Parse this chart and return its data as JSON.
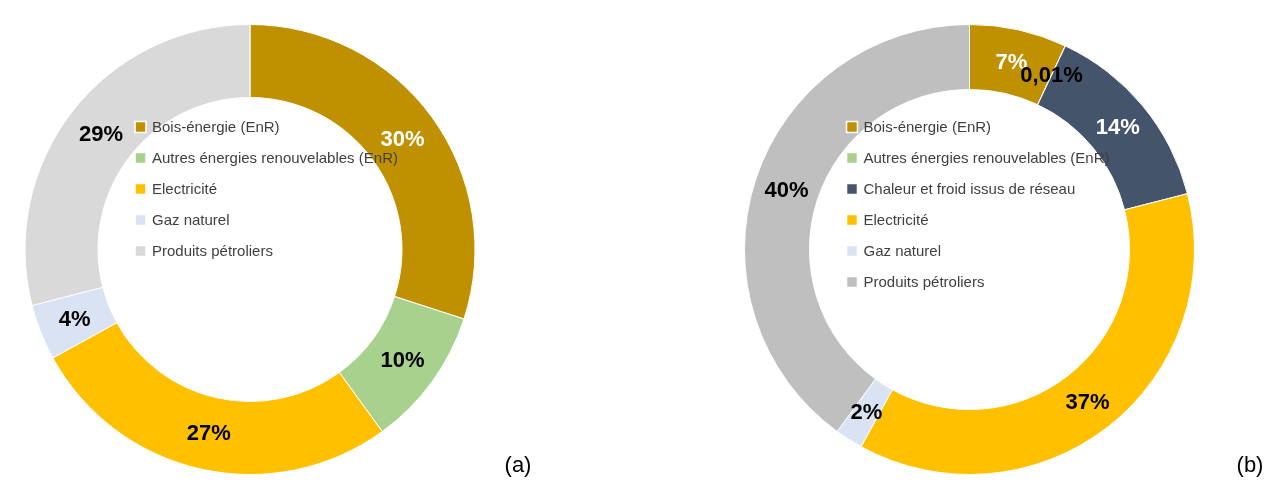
{
  "chart_data": [
    {
      "type": "donut",
      "categories": [
        "Bois-énergie (EnR)",
        "Autres énergies renouvelables (EnR)",
        "Electricité",
        "Gaz naturel",
        "Produits pétroliers"
      ],
      "values": [
        30,
        10,
        27,
        4,
        29
      ],
      "colors": [
        "#bf9000",
        "#a9d18e",
        "#ffc000",
        "#dae3f3",
        "#d9d9d9"
      ],
      "value_labels": [
        "30%",
        "10%",
        "27%",
        "4%",
        "29%"
      ],
      "legend": "center",
      "annotations": [
        "(a)"
      ]
    },
    {
      "type": "donut",
      "categories": [
        "Bois-énergie (EnR)",
        "Autres énergies renouvelables (EnR)",
        "Chaleur et froid issus de réseau",
        "Electricité",
        "Gaz naturel",
        "Produits pétroliers"
      ],
      "values": [
        7,
        0.01,
        14,
        37,
        2,
        40
      ],
      "colors": [
        "#bf9000",
        "#a9d18e",
        "#44546a",
        "#ffc000",
        "#dae3f3",
        "#bfbfbf"
      ],
      "value_labels": [
        "7%",
        "0,01%",
        "14%",
        "37%",
        "2%",
        "40%"
      ],
      "legend": "center",
      "annotations": [
        "(b)"
      ]
    }
  ]
}
